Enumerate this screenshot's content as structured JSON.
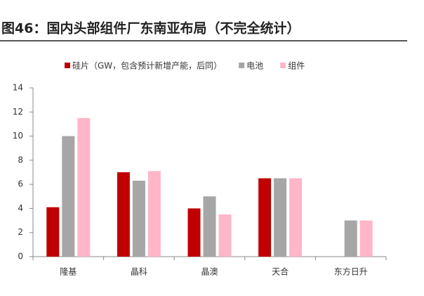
{
  "chart_data": {
    "type": "bar",
    "title": "图46：国内头部组件厂东南亚布局（不完全统计）",
    "categories": [
      "隆基",
      "晶科",
      "晶澳",
      "天合",
      "东方日升"
    ],
    "series": [
      {
        "name": "硅片（GW，包含预计新增产能，后同）",
        "color": "#c00000",
        "values": [
          4.1,
          7,
          4,
          6.5,
          null
        ]
      },
      {
        "name": "电池",
        "color": "#a6a6a6",
        "values": [
          10,
          6.3,
          5,
          6.5,
          3
        ]
      },
      {
        "name": "组件",
        "color": "#ffb6c8",
        "values": [
          11.5,
          7.1,
          3.5,
          6.5,
          3
        ]
      }
    ],
    "ylim": [
      0,
      14
    ],
    "yticks": [
      0,
      2,
      4,
      6,
      8,
      10,
      12,
      14
    ],
    "grid": false,
    "legend": "top"
  }
}
